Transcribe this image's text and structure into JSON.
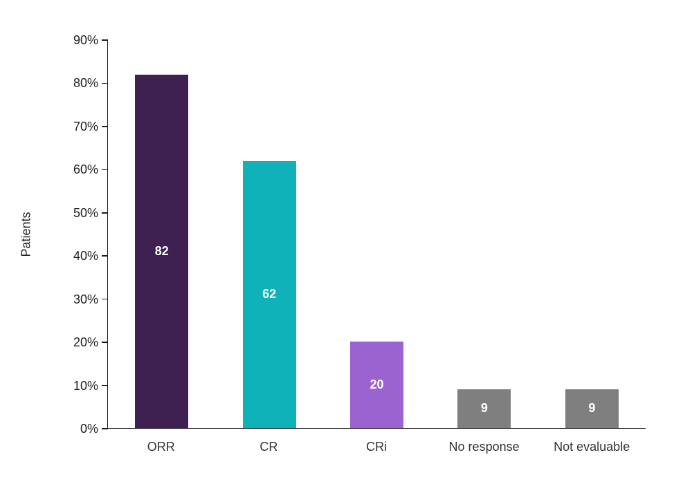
{
  "chart_data": {
    "type": "bar",
    "title": "",
    "xlabel": "",
    "ylabel": "Patients",
    "categories": [
      "ORR",
      "CR",
      "CRi",
      "No response",
      "Not evaluable"
    ],
    "values": [
      82,
      62,
      20,
      9,
      9
    ],
    "bar_labels": [
      "82",
      "62",
      "20",
      "9",
      "9"
    ],
    "bar_colors": [
      "#3e2151",
      "#10b2ba",
      "#9b63cf",
      "#7f7f7f",
      "#7f7f7f"
    ],
    "ylim": [
      0,
      90
    ],
    "yticks": [
      0,
      10,
      20,
      30,
      40,
      50,
      60,
      70,
      80,
      90
    ],
    "ytick_labels": [
      "0%",
      "10%",
      "20%",
      "30%",
      "40%",
      "50%",
      "60%",
      "70%",
      "80%",
      "90%"
    ],
    "grid": false,
    "legend": "none",
    "label_color": "#ffffff",
    "axis_color": "#1a1a1a"
  }
}
